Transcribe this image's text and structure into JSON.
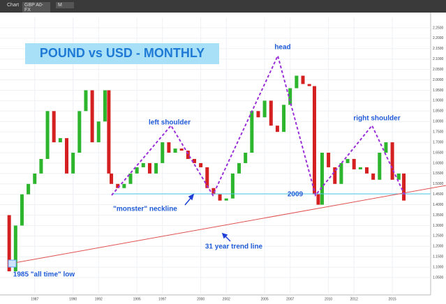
{
  "toolbar": {
    "app": "Chart",
    "symbol": "GBP A0-FX",
    "interval": "M"
  },
  "chart_data": {
    "type": "candlestick",
    "title": "POUND vs USD - MONTHLY",
    "x": [
      1984.5,
      1985.0,
      1985.5,
      1986.0,
      1986.5,
      1987.0,
      1987.5,
      1988.0,
      1988.5,
      1989.0,
      1989.5,
      1990.0,
      1990.5,
      1991.0,
      1991.5,
      1992.0,
      1992.5,
      1992.8,
      1993.0,
      1993.5,
      1994.0,
      1994.5,
      1995.0,
      1995.5,
      1996.0,
      1996.5,
      1997.0,
      1997.5,
      1998.0,
      1998.5,
      1999.0,
      1999.5,
      2000.0,
      2000.5,
      2001.0,
      2001.5,
      2002.0,
      2002.5,
      2003.0,
      2003.5,
      2004.0,
      2004.5,
      2005.0,
      2005.5,
      2006.0,
      2006.5,
      2007.0,
      2007.5,
      2008.0,
      2008.5,
      2008.9,
      2009.2,
      2009.5,
      2010.0,
      2010.5,
      2011.0,
      2011.5,
      2012.0,
      2012.5,
      2013.0,
      2013.5,
      2014.0,
      2014.5,
      2015.0,
      2015.5,
      2015.9
    ],
    "values": [
      1.35,
      1.08,
      1.3,
      1.45,
      1.5,
      1.55,
      1.62,
      1.85,
      1.7,
      1.72,
      1.55,
      1.65,
      1.85,
      1.95,
      1.7,
      1.8,
      1.95,
      1.55,
      1.5,
      1.48,
      1.5,
      1.55,
      1.58,
      1.6,
      1.55,
      1.6,
      1.7,
      1.65,
      1.67,
      1.66,
      1.62,
      1.6,
      1.58,
      1.48,
      1.45,
      1.42,
      1.43,
      1.55,
      1.6,
      1.65,
      1.85,
      1.82,
      1.9,
      1.78,
      1.75,
      1.88,
      1.96,
      2.02,
      1.98,
      1.97,
      1.45,
      1.4,
      1.65,
      1.58,
      1.5,
      1.6,
      1.62,
      1.57,
      1.58,
      1.55,
      1.52,
      1.65,
      1.7,
      1.52,
      1.55,
      1.42
    ],
    "up_color": "#2db52d",
    "down_color": "#d42020",
    "xlim": [
      1984.28,
      2018.0
    ],
    "ylim": [
      1.0,
      2.3
    ],
    "xticks": [
      1987,
      1990,
      1992,
      1995,
      1997,
      2000,
      2002,
      2005,
      2007,
      2010,
      2012,
      2015
    ],
    "yticks": [
      {
        "value": 1.05,
        "label": "1.0500"
      },
      {
        "value": 1.1,
        "label": "1.1000"
      },
      {
        "value": 1.15,
        "label": "1.1500"
      },
      {
        "value": 1.2,
        "label": "1.2000"
      },
      {
        "value": 1.25,
        "label": "1.2500"
      },
      {
        "value": 1.3,
        "label": "1.3000"
      },
      {
        "value": 1.35,
        "label": "1.3500"
      },
      {
        "value": 1.4,
        "label": "1.4000"
      },
      {
        "value": 1.45,
        "label": "1.4500"
      },
      {
        "value": 1.5,
        "label": "1.5000"
      },
      {
        "value": 1.55,
        "label": "1.5500"
      },
      {
        "value": 1.6,
        "label": "1.6000"
      },
      {
        "value": 1.65,
        "label": "1.6500"
      },
      {
        "value": 1.7,
        "label": "1.7000"
      },
      {
        "value": 1.75,
        "label": "1.7500"
      },
      {
        "value": 1.8,
        "label": "1.8000"
      },
      {
        "value": 1.85,
        "label": "1.8500"
      },
      {
        "value": 1.9,
        "label": "1.9000"
      },
      {
        "value": 1.95,
        "label": "1.9500"
      },
      {
        "value": 2.0,
        "label": "2.0000"
      },
      {
        "value": 2.05,
        "label": "2.0500"
      },
      {
        "value": 2.1,
        "label": "2.1000"
      },
      {
        "value": 2.15,
        "label": "2.1500"
      },
      {
        "value": 2.2,
        "label": "2.2000"
      },
      {
        "value": 2.25,
        "label": "2.2500"
      }
    ],
    "grid": true,
    "annotations": [
      "head",
      "left shoulder",
      "right shoulder",
      "\"monster\" neckline",
      "2009",
      "31 year trend line",
      "1985 \"all time\" low"
    ]
  }
}
